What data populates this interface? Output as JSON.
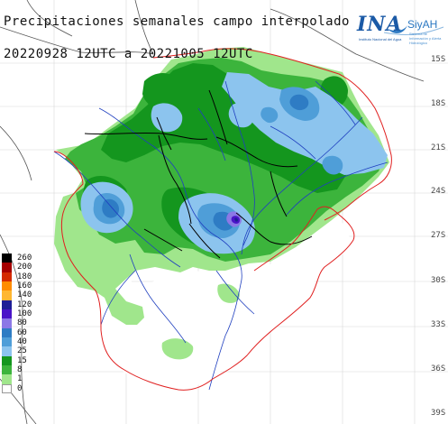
{
  "title": {
    "line1": "Precipitaciones semanales campo interpolado",
    "line2": "20220928 12UTC a 20221005 12UTC"
  },
  "logo": {
    "ina": "INA",
    "ina_sub": "Instituto Nacional del Agua",
    "siyah": "SiyAH",
    "siyah_sub": "Sistema de Información y Alerta Hidrológico"
  },
  "legend": [
    {
      "label": "260",
      "color": "#000000"
    },
    {
      "label": "200",
      "color": "#a50000"
    },
    {
      "label": "180",
      "color": "#d42a00"
    },
    {
      "label": "160",
      "color": "#ff8c00"
    },
    {
      "label": "140",
      "color": "#ffb732"
    },
    {
      "label": "120",
      "color": "#1e1e96"
    },
    {
      "label": "100",
      "color": "#4a14c8"
    },
    {
      "label": "80",
      "color": "#8c78e6"
    },
    {
      "label": "60",
      "color": "#2e7cc4"
    },
    {
      "label": "40",
      "color": "#4f9ed8"
    },
    {
      "label": "25",
      "color": "#8cc4ee"
    },
    {
      "label": "15",
      "color": "#14961e"
    },
    {
      "label": "8",
      "color": "#3cb43c"
    },
    {
      "label": "1",
      "color": "#a0e68c"
    },
    {
      "label": "0",
      "color": "#ffffff"
    }
  ],
  "lat_labels": [
    "15S",
    "18S",
    "21S",
    "24S",
    "27S",
    "30S",
    "33S",
    "36S",
    "39S"
  ]
}
